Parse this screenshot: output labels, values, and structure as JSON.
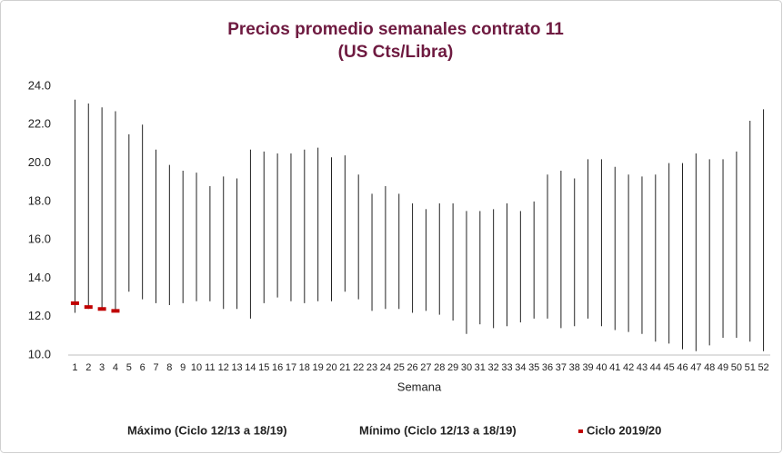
{
  "chart_data": {
    "type": "high-low",
    "title": [
      "Precios promedio semanales contrato 11",
      "(US Cts/Libra)"
    ],
    "x_label": "Semana",
    "categories": [
      "1",
      "2",
      "3",
      "4",
      "5",
      "6",
      "7",
      "8",
      "9",
      "10",
      "11",
      "12",
      "13",
      "14",
      "15",
      "16",
      "17",
      "18",
      "19",
      "20",
      "21",
      "22",
      "23",
      "24",
      "25",
      "26",
      "27",
      "28",
      "29",
      "30",
      "31",
      "32",
      "33",
      "34",
      "35",
      "36",
      "37",
      "38",
      "39",
      "40",
      "41",
      "42",
      "43",
      "44",
      "45",
      "46",
      "47",
      "48",
      "49",
      "50",
      "51",
      "52"
    ],
    "series": [
      {
        "name": "Máximo (Ciclo 12/13 a 18/19)",
        "color": "#222222",
        "values": [
          23.3,
          23.1,
          22.9,
          22.7,
          21.5,
          22.0,
          20.7,
          19.9,
          19.6,
          19.5,
          18.8,
          19.3,
          19.2,
          20.7,
          20.6,
          20.5,
          20.5,
          20.7,
          20.8,
          20.3,
          20.4,
          19.4,
          18.4,
          18.8,
          18.4,
          17.9,
          17.6,
          17.9,
          17.9,
          17.5,
          17.5,
          17.6,
          17.9,
          17.5,
          18.0,
          19.4,
          19.6,
          19.2,
          20.2,
          20.2,
          19.8,
          19.4,
          19.3,
          19.4,
          20.0,
          20.0,
          20.5,
          20.2,
          20.2,
          20.6,
          22.2,
          22.8
        ]
      },
      {
        "name": "Mínimo (Ciclo 12/13 a 18/19)",
        "color": "#222222",
        "values": [
          12.2,
          12.4,
          12.4,
          12.3,
          13.3,
          12.9,
          12.7,
          12.6,
          12.7,
          12.8,
          12.8,
          12.4,
          12.4,
          11.9,
          12.7,
          13.0,
          12.8,
          12.7,
          12.8,
          12.8,
          13.3,
          12.9,
          12.3,
          12.4,
          12.4,
          12.2,
          12.3,
          12.1,
          11.8,
          11.1,
          11.6,
          11.4,
          11.5,
          11.7,
          11.9,
          11.9,
          11.4,
          11.5,
          11.9,
          11.5,
          11.3,
          11.2,
          11.1,
          10.7,
          10.6,
          10.3,
          10.2,
          10.5,
          10.9,
          10.9,
          10.7,
          10.2
        ]
      },
      {
        "name": "Ciclo 2019/20",
        "color": "#c00000",
        "values": [
          12.7,
          12.5,
          12.4,
          12.3,
          null,
          null,
          null,
          null,
          null,
          null,
          null,
          null,
          null,
          null,
          null,
          null,
          null,
          null,
          null,
          null,
          null,
          null,
          null,
          null,
          null,
          null,
          null,
          null,
          null,
          null,
          null,
          null,
          null,
          null,
          null,
          null,
          null,
          null,
          null,
          null,
          null,
          null,
          null,
          null,
          null,
          null,
          null,
          null,
          null,
          null,
          null,
          null
        ]
      }
    ],
    "ylim": [
      10,
      24
    ],
    "yticks": [
      {
        "value": 10,
        "label": "10.0"
      },
      {
        "value": 12,
        "label": "12.0"
      },
      {
        "value": 14,
        "label": "14.0"
      },
      {
        "value": 16,
        "label": "16.0"
      },
      {
        "value": 18,
        "label": "18.0"
      },
      {
        "value": 20,
        "label": "20.0"
      },
      {
        "value": 22,
        "label": "22.0"
      },
      {
        "value": 24,
        "label": "24.0"
      }
    ],
    "grid": false
  }
}
